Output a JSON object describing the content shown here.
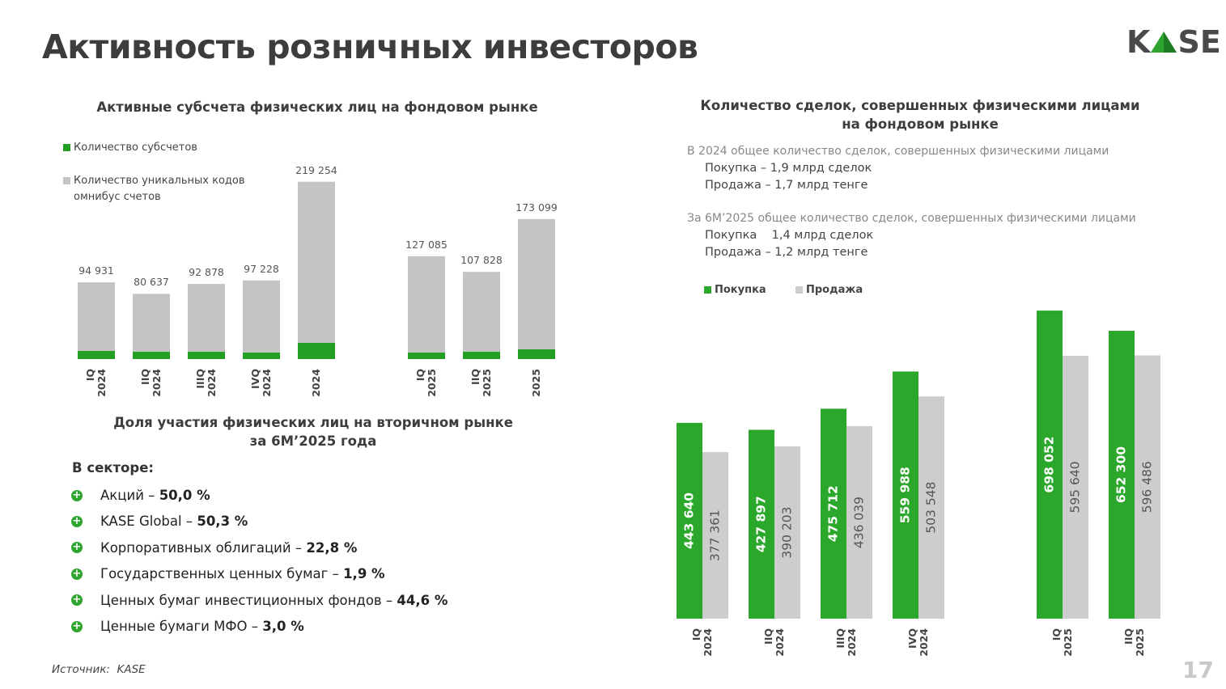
{
  "title": "Активность розничных инвесторов",
  "logo": {
    "left": "K",
    "right": "SE"
  },
  "chart_data": [
    {
      "type": "bar",
      "bar_mode": "overlay",
      "title": "Активные субсчета физических лиц на фондовом рынке",
      "categories": [
        "IQ 2024",
        "IIQ 2024",
        "IIIQ 2024",
        "IVQ 2024",
        "2024",
        "IQ 2025",
        "IIQ 2025",
        "2025"
      ],
      "series": [
        {
          "name": "Количество уникальных кодов омнибус счетов",
          "color": "#c4c4c4",
          "values": [
            94931,
            80637,
            92878,
            97228,
            219254,
            127085,
            107828,
            173099
          ],
          "value_labels": [
            "94 931",
            "80 637",
            "92 878",
            "97 228",
            "219 254",
            "127 085",
            "107 828",
            "173 099"
          ]
        },
        {
          "name": "Количество субсчетов",
          "color": "#23a023",
          "values": [
            10000,
            9000,
            9000,
            8000,
            20000,
            8000,
            9000,
            12000
          ]
        }
      ],
      "ylim": [
        0,
        220000
      ]
    },
    {
      "type": "bar",
      "bar_mode": "group",
      "title": "Количество сделок, совершенных физическими лицами на фондовом рынке",
      "notes": [
        {
          "heading": "В 2024 общее количество сделок, совершенных физическими лицами",
          "lines": [
            "Покупка – 1,9 млрд сделок",
            "Продажа – 1,7 млрд тенге"
          ]
        },
        {
          "heading": "За 6М’2025 общее количество сделок, совершенных физическими лицами",
          "lines": [
            "Покупка    1,4 млрд сделок",
            "Продажа – 1,2 млрд тенге"
          ]
        }
      ],
      "categories": [
        "IQ 2024",
        "IIQ 2024",
        "IIIQ 2024",
        "IVQ 2024",
        "IQ 2025",
        "IIQ 2025"
      ],
      "series": [
        {
          "name": "Покупка",
          "color": "#2ba82b",
          "values": [
            443640,
            427897,
            475712,
            559988,
            698052,
            652300
          ],
          "value_labels": [
            "443 640",
            "427 897",
            "475 712",
            "559 988",
            "698 052",
            "652 300"
          ]
        },
        {
          "name": "Продажа",
          "color": "#cdcdcd",
          "values": [
            377361,
            390203,
            436039,
            503548,
            595640,
            596486
          ],
          "value_labels": [
            "377 361",
            "390 203",
            "436 039",
            "503 548",
            "595 640",
            "596 486"
          ]
        }
      ],
      "ylim": [
        0,
        700000
      ]
    }
  ],
  "participation": {
    "title": "Доля участия физических лиц на вторичном рынке за 6М’2025 года",
    "sector_label": "В секторе:",
    "items": [
      {
        "label": "Акций –",
        "value": "50,0 %"
      },
      {
        "label": "KASE Global –",
        "value": "50,3 %"
      },
      {
        "label": "Корпоративных облигаций –",
        "value": "22,8 %"
      },
      {
        "label": "Государственных ценных бумаг –",
        "value": "1,9 %"
      },
      {
        "label": "Ценных бумаг инвестиционных фондов –",
        "value": "44,6 %"
      },
      {
        "label": "Ценные бумаги МФО –",
        "value": "3,0 %"
      }
    ]
  },
  "source": "Источник:  KASE",
  "page_number": "17"
}
